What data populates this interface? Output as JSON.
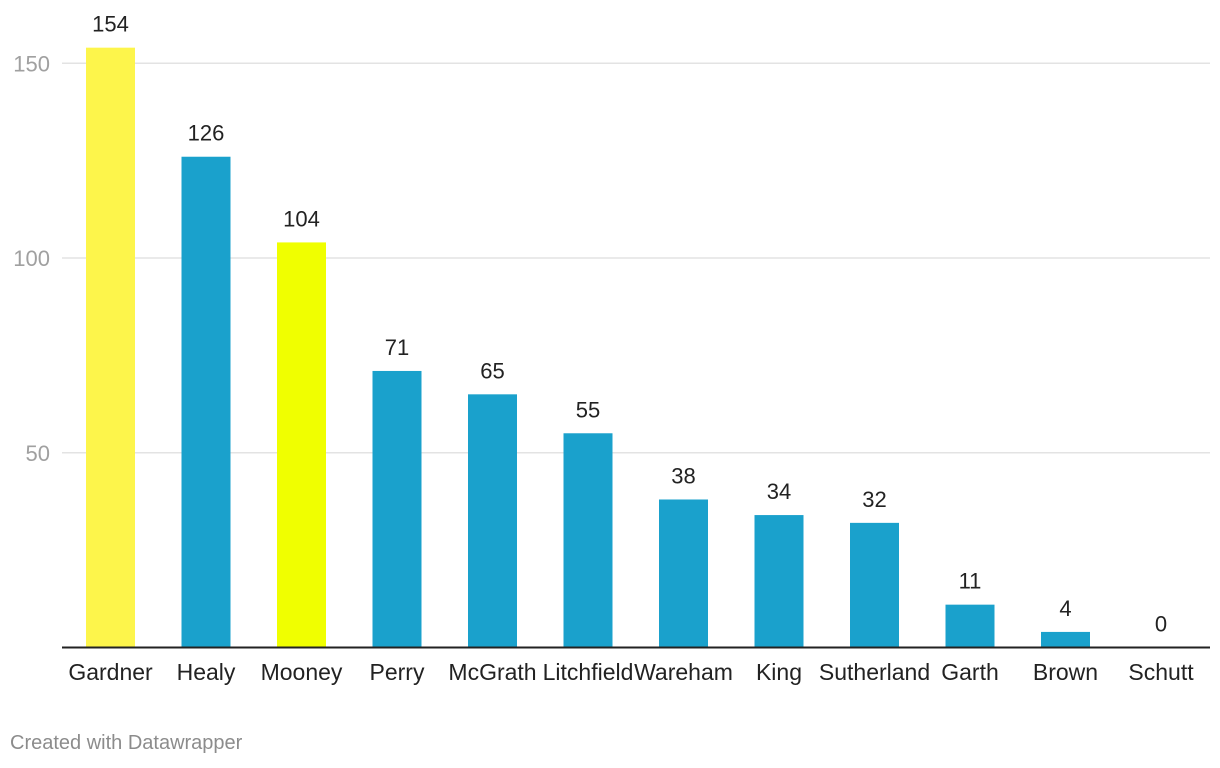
{
  "chart_data": {
    "type": "bar",
    "categories": [
      "Gardner",
      "Healy",
      "Mooney",
      "Perry",
      "McGrath",
      "Litchfield",
      "Wareham",
      "King",
      "Sutherland",
      "Garth",
      "Brown",
      "Schutt"
    ],
    "values": [
      154,
      126,
      104,
      71,
      65,
      55,
      38,
      34,
      32,
      11,
      4,
      0
    ],
    "colors": [
      "#fdf54b",
      "#1aa1cc",
      "#f0ff00",
      "#1aa1cc",
      "#1aa1cc",
      "#1aa1cc",
      "#1aa1cc",
      "#1aa1cc",
      "#1aa1cc",
      "#1aa1cc",
      "#1aa1cc",
      "#1aa1cc"
    ],
    "yticks": [
      50,
      100,
      150
    ],
    "ylim": [
      0,
      160
    ],
    "grid": true,
    "title": "",
    "xlabel": "",
    "ylabel": ""
  },
  "footer": {
    "credit": "Created with Datawrapper"
  }
}
